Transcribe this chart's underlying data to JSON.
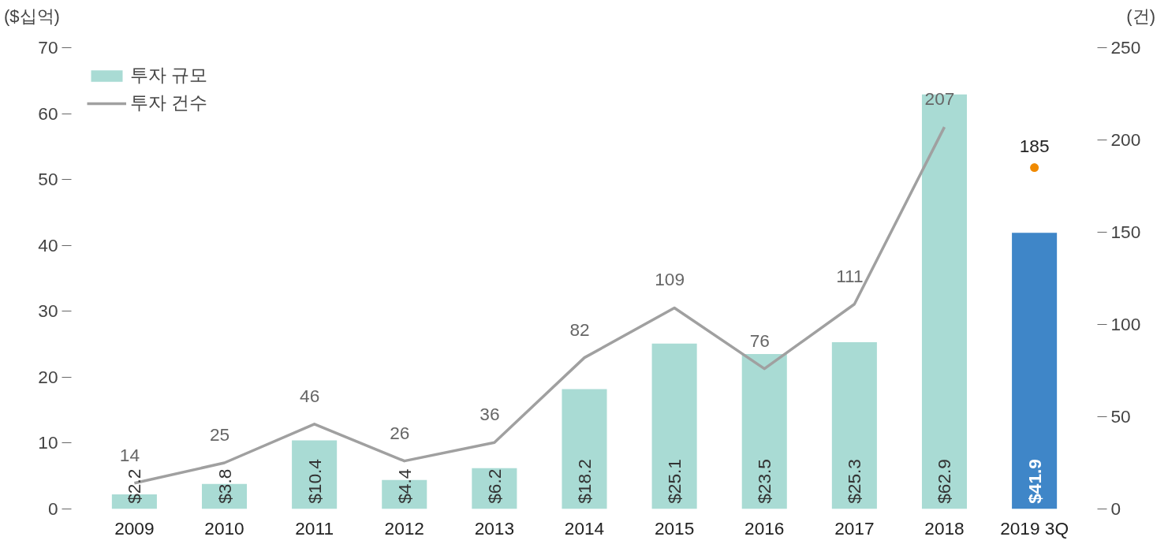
{
  "chart_data": {
    "type": "bar",
    "ylabel": "($십억)",
    "y2label": "(건)",
    "categories": [
      "2009",
      "2010",
      "2011",
      "2012",
      "2013",
      "2014",
      "2015",
      "2016",
      "2017",
      "2018",
      "2019 3Q"
    ],
    "series": [
      {
        "name": "투자 규모",
        "color": "#a9dbd4",
        "colors": [
          "#a9dbd4",
          "#a9dbd4",
          "#a9dbd4",
          "#a9dbd4",
          "#a9dbd4",
          "#a9dbd4",
          "#a9dbd4",
          "#a9dbd4",
          "#a9dbd4",
          "#a9dbd4",
          "#3f86c8"
        ],
        "values": [
          2.2,
          3.8,
          10.4,
          4.4,
          6.2,
          18.2,
          25.1,
          23.5,
          25.3,
          62.9,
          41.9
        ],
        "value_labels": [
          "$2.2",
          "$3.8",
          "$10.4",
          "$4.4",
          "$6.2",
          "$18.2",
          "$25.1",
          "$23.5",
          "$25.3",
          "$62.9",
          "$41.9"
        ]
      },
      {
        "name": "투자 건수",
        "type": "line",
        "axis": "y2",
        "color": "#a0a0a0",
        "values": [
          14,
          25,
          46,
          26,
          36,
          82,
          109,
          76,
          111,
          207,
          null
        ],
        "value_labels": [
          "14",
          "25",
          "46",
          "26",
          "36",
          "82",
          "109",
          "76",
          "111",
          "207",
          null
        ]
      },
      {
        "type": "scatter",
        "axis": "y2",
        "color": "#f08a00",
        "marker": "circle",
        "values": [
          null,
          null,
          null,
          null,
          null,
          null,
          null,
          null,
          null,
          null,
          185
        ],
        "value_labels": [
          null,
          null,
          null,
          null,
          null,
          null,
          null,
          null,
          null,
          null,
          "185"
        ]
      }
    ],
    "ylim": [
      0,
      70
    ],
    "yticks": [
      0,
      10,
      20,
      30,
      40,
      50,
      60,
      70
    ],
    "y2lim": [
      0,
      250
    ],
    "y2ticks": [
      0,
      50,
      100,
      150,
      200,
      250
    ],
    "legend": "top left",
    "grid": false,
    "line_style": "solid"
  }
}
